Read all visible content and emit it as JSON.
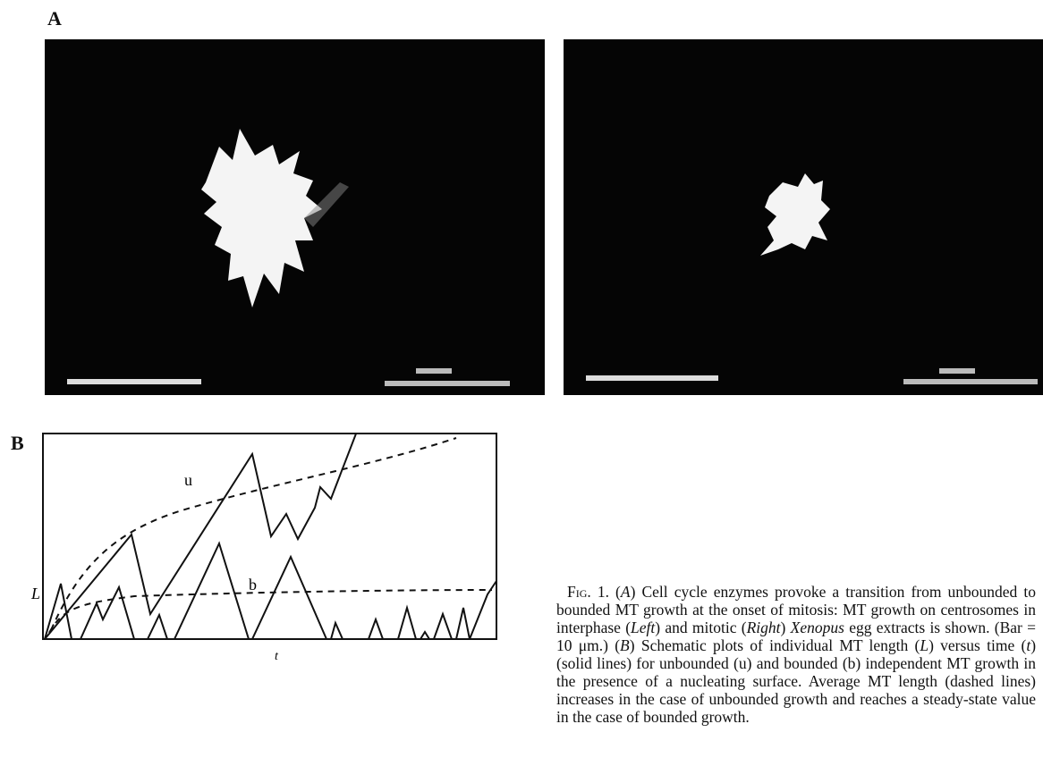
{
  "panel_a": {
    "label": "A"
  },
  "panel_b": {
    "label": "B",
    "y_label": "L",
    "x_label": "t",
    "curve_u_label": "u",
    "curve_b_label": "b"
  },
  "caption": [
    "Fig. 1.",
    " (",
    "A",
    ") Cell cycle enzymes provoke a transition from unbounded to bounded MT growth at the onset of mitosis: MT growth on centrosomes in interphase (",
    "Left",
    ") and mitotic (",
    "Right",
    ") ",
    "Xenopus",
    " egg extracts is shown. (Bar = 10 μm.) (",
    "B",
    ") Schematic plots of individual MT length (",
    "L",
    ") versus time (",
    "t",
    ") (solid lines) for unbounded (u) and bounded (b) independent MT growth in the presence of a nucleating surface. Average MT length (dashed lines) increases in the case of unbounded growth and reaches a steady-state value in the case of bounded growth."
  ]
}
